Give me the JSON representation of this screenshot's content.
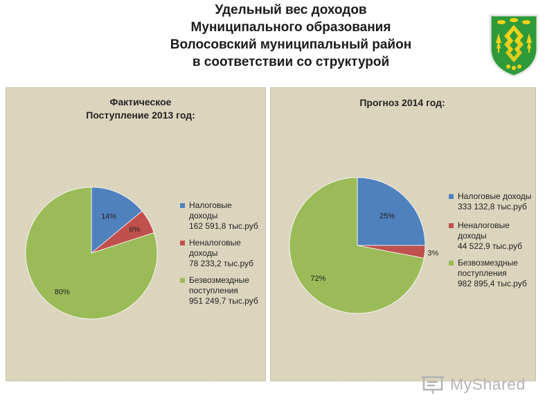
{
  "header": {
    "title_lines": [
      "Удельный вес доходов",
      "Муниципального образования",
      "Волосовский муниципальный район",
      "в соответствии со структурой"
    ]
  },
  "emblem": {
    "icon": "coat-of-arms-icon",
    "colors": {
      "shield": "#2e9a3a",
      "pattern": "#f2d21b",
      "border": "#e8e8e8"
    }
  },
  "chart_data": [
    {
      "type": "pie",
      "title_lines": [
        "Фактическое",
        "Поступление  2013 год:"
      ],
      "slices": [
        {
          "label": [
            "Налоговые",
            "доходы",
            "162 591,8 тыс.руб"
          ],
          "percent": 14,
          "percent_label": "14%",
          "color": "#4f81bd"
        },
        {
          "label": [
            "Неналоговые",
            "доходы",
            "78 233,2 тыс.руб"
          ],
          "percent": 6,
          "percent_label": "6%",
          "color": "#c0504d"
        },
        {
          "label": [
            "Безвозмездные",
            "поступления",
            "951 249,7 тыс.руб"
          ],
          "percent": 80,
          "percent_label": "80%",
          "color": "#9bbb59"
        }
      ],
      "legend": "right"
    },
    {
      "type": "pie",
      "title_lines": [
        "Прогноз   2014 год:"
      ],
      "slices": [
        {
          "label": [
            "Налоговые доходы",
            "333 132,8 тыс.руб"
          ],
          "percent": 25,
          "percent_label": "25%",
          "color": "#4f81bd"
        },
        {
          "label": [
            "Неналоговые",
            "доходы",
            "44 522,9 тыс.руб"
          ],
          "percent": 3,
          "percent_label": "3%",
          "color": "#c0504d"
        },
        {
          "label": [
            "Безвозмездные",
            "поступления",
            "982 895,4  тыс.руб"
          ],
          "percent": 72,
          "percent_label": "72%",
          "color": "#9bbb59"
        }
      ],
      "legend": "right"
    }
  ],
  "watermark": {
    "text": "MyShared",
    "icon": "presentation-board-icon"
  }
}
